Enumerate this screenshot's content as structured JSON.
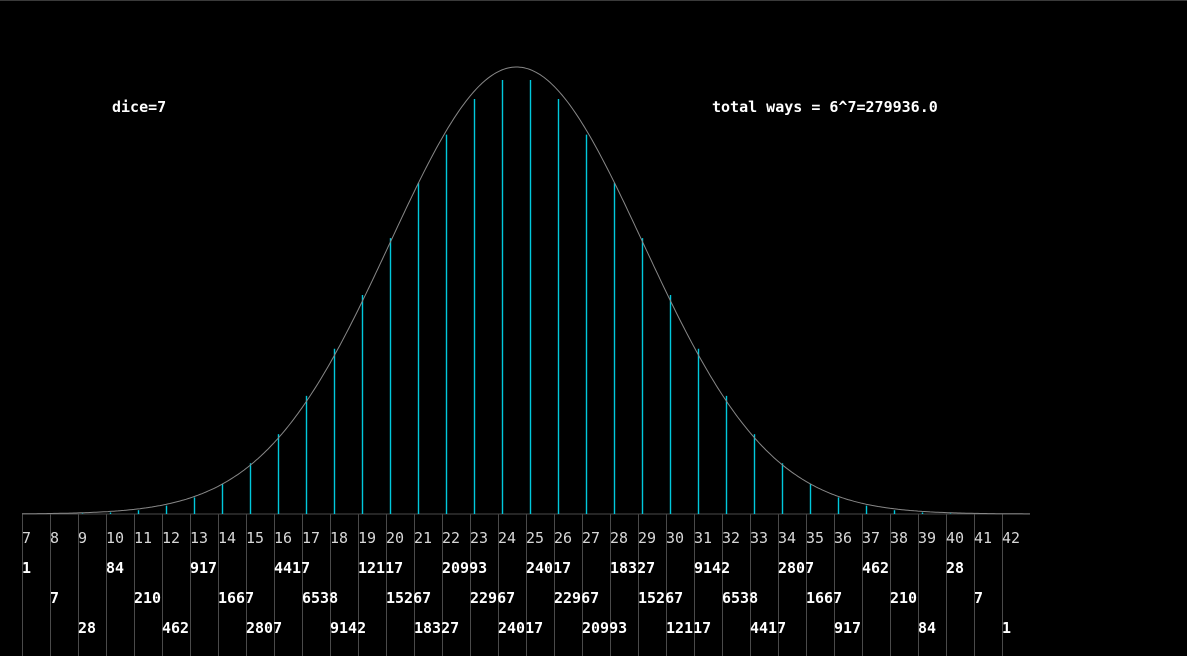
{
  "header": {
    "dice_label": "dice=7",
    "total_label": "total ways = 6^7=279936.0"
  },
  "colors": {
    "background": "#000000",
    "bar": "#00c8dc",
    "curve": "#888888",
    "grid": "#4a4a4a",
    "text": "#ffffff",
    "tick_text": "#d8d8d8"
  },
  "chart_data": {
    "type": "bar",
    "title": "",
    "xlabel": "",
    "ylabel": "",
    "categories": [
      7,
      8,
      9,
      10,
      11,
      12,
      13,
      14,
      15,
      16,
      17,
      18,
      19,
      20,
      21,
      22,
      23,
      24,
      25,
      26,
      27,
      28,
      29,
      30,
      31,
      32,
      33,
      34,
      35,
      36,
      37,
      38,
      39,
      40,
      41,
      42
    ],
    "values": [
      1,
      7,
      28,
      84,
      210,
      462,
      917,
      1667,
      2807,
      4417,
      6538,
      9142,
      12117,
      15267,
      18327,
      20993,
      22967,
      24017,
      24017,
      22967,
      20993,
      18327,
      15267,
      12117,
      9142,
      6538,
      4417,
      2807,
      1667,
      917,
      462,
      210,
      84,
      28,
      7,
      1
    ],
    "ylim": [
      0,
      24017
    ],
    "curve": "normal-approximation",
    "grid": true
  }
}
